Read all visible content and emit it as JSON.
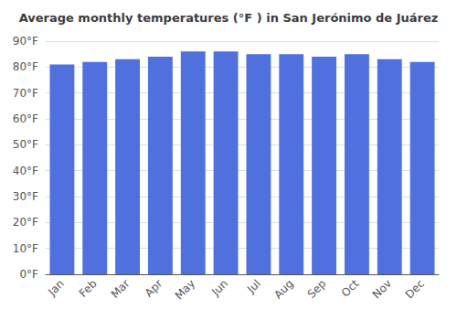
{
  "chart_data": {
    "type": "bar",
    "title": "Average monthly temperatures (°F ) in San Jerónimo de Juárez",
    "categories": [
      "Jan",
      "Feb",
      "Mar",
      "Apr",
      "May",
      "Jun",
      "Jul",
      "Aug",
      "Sep",
      "Oct",
      "Nov",
      "Dec"
    ],
    "values": [
      81,
      82,
      83,
      84,
      86,
      86,
      85,
      85,
      84,
      85,
      83,
      82
    ],
    "ylim": [
      0,
      90
    ],
    "yticks": [
      {
        "value": 0,
        "label": "0°F"
      },
      {
        "value": 10,
        "label": "10°F"
      },
      {
        "value": 20,
        "label": "20°F"
      },
      {
        "value": 30,
        "label": "30°F"
      },
      {
        "value": 40,
        "label": "40°F"
      },
      {
        "value": 50,
        "label": "50°F"
      },
      {
        "value": 60,
        "label": "60°F"
      },
      {
        "value": 70,
        "label": "70°F"
      },
      {
        "value": 80,
        "label": "80°F"
      },
      {
        "value": 90,
        "label": "90°F"
      }
    ],
    "grid": true
  }
}
